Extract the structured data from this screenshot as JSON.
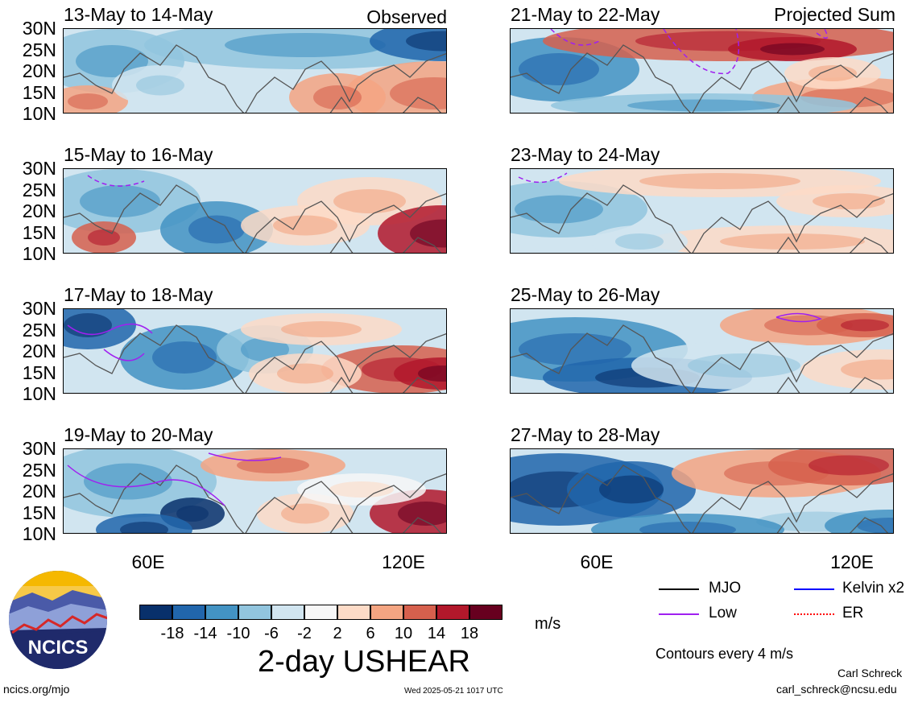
{
  "columns": {
    "left_header": "Observed",
    "right_header": "Projected Sum"
  },
  "panels": [
    {
      "title": "13-May to 14-May"
    },
    {
      "title": "15-May to 16-May"
    },
    {
      "title": "17-May to 18-May"
    },
    {
      "title": "19-May to 20-May"
    },
    {
      "title": "21-May to 22-May"
    },
    {
      "title": "23-May to 24-May"
    },
    {
      "title": "25-May to 26-May"
    },
    {
      "title": "27-May to 28-May"
    }
  ],
  "y_ticks": [
    "30N",
    "25N",
    "20N",
    "15N",
    "10N"
  ],
  "x_ticks": [
    "60E",
    "120E"
  ],
  "colorbar": {
    "colors": [
      "#08306b",
      "#2166ac",
      "#4393c3",
      "#92c5de",
      "#d1e5f0",
      "#f7f7f7",
      "#fddbc7",
      "#f4a582",
      "#d6604d",
      "#b2182b",
      "#67001f"
    ],
    "labels": [
      "-18",
      "-14",
      "-10",
      "-6",
      "-2",
      "2",
      "6",
      "10",
      "14",
      "18"
    ],
    "units": "m/s"
  },
  "variable_title": "2-day USHEAR",
  "legend": {
    "items": [
      {
        "label": "MJO",
        "color": "#000000"
      },
      {
        "label": "Kelvin x2",
        "color": "#0000ff"
      },
      {
        "label": "Low",
        "color": "#a020f0"
      },
      {
        "label": "ER",
        "color": "#ff0000"
      }
    ],
    "contour_note": "Contours every 4 m/s"
  },
  "footer": {
    "logo_text": "NCICS",
    "website": "ncics.org/mjo",
    "timestamp": "Wed 2025-05-21 1017 UTC",
    "author": "Carl Schreck",
    "email": "carl_schreck@ncsu.edu"
  }
}
